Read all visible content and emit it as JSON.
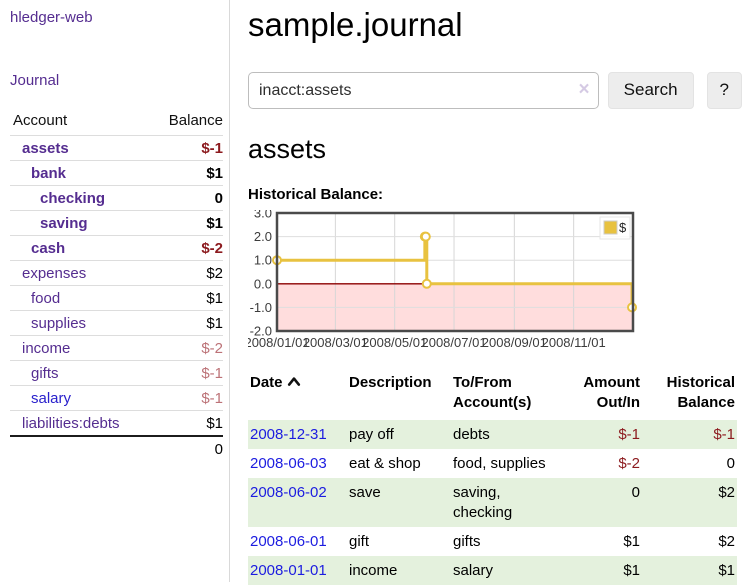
{
  "app": {
    "brand": "hledger-web",
    "nav_journal": "Journal"
  },
  "sidebar": {
    "header": {
      "account": "Account",
      "balance": "Balance"
    },
    "accounts": [
      {
        "name": "assets",
        "depth": 1,
        "balance": "$-1",
        "emph": true
      },
      {
        "name": "bank",
        "depth": 2,
        "balance": "$1",
        "emph": true
      },
      {
        "name": "checking",
        "depth": 3,
        "balance": "0",
        "emph": true
      },
      {
        "name": "saving",
        "depth": 3,
        "balance": "$1",
        "emph": true
      },
      {
        "name": "cash",
        "depth": 2,
        "balance": "$-2",
        "emph": true
      },
      {
        "name": "expenses",
        "depth": 1,
        "balance": "$2"
      },
      {
        "name": "food",
        "depth": 2,
        "balance": "$1"
      },
      {
        "name": "supplies",
        "depth": 2,
        "balance": "$1"
      },
      {
        "name": "income",
        "depth": 1,
        "balance": "$-2"
      },
      {
        "name": "gifts",
        "depth": 2,
        "balance": "$-1"
      },
      {
        "name": "salary",
        "depth": 2,
        "balance": "$-1",
        "unvisited": true
      },
      {
        "name": "liabilities:debts",
        "depth": 1,
        "balance": "$1"
      }
    ],
    "total": "0"
  },
  "header": {
    "title": "sample.journal"
  },
  "search": {
    "value": "inacct:assets",
    "clear_icon": "×",
    "button_label": "Search",
    "help_label": "?"
  },
  "account_view": {
    "title": "assets",
    "chart_heading": "Historical Balance:"
  },
  "chart_data": {
    "type": "line",
    "style": "step-after",
    "title": "Historical Balance",
    "series": [
      {
        "name": "$",
        "color": "#e8c240",
        "points": [
          [
            "2008-01-01",
            1
          ],
          [
            "2008-06-01",
            2
          ],
          [
            "2008-06-02",
            2
          ],
          [
            "2008-06-03",
            0
          ],
          [
            "2008-12-31",
            -1
          ]
        ]
      }
    ],
    "xlim": [
      "2008-01-01",
      "2009-01-01"
    ],
    "ylim": [
      -2,
      3
    ],
    "y_ticks": [
      "3.0",
      "2.0",
      "1.0",
      "0.0",
      "-1.0",
      "-2.0"
    ],
    "x_ticks": [
      "2008/01/01",
      "2008/03/01",
      "2008/05/01",
      "2008/07/01",
      "2008/09/01",
      "2008/11/01"
    ],
    "grid": true,
    "negative_fill": "#ffdddd",
    "zero_line_color": "#8b0000",
    "legend_position": "top-right",
    "legend_label": "$"
  },
  "register": {
    "columns": [
      "Date",
      "Description",
      "To/From Account(s)",
      "Amount Out/In",
      "Historical Balance"
    ],
    "sort": "ascending",
    "rows": [
      {
        "date": "2008-12-31",
        "description": "pay off",
        "accounts": "debts",
        "amount": "$-1",
        "balance": "$-1"
      },
      {
        "date": "2008-06-03",
        "description": "eat & shop",
        "accounts": "food, supplies",
        "amount": "$-2",
        "balance": "0"
      },
      {
        "date": "2008-06-02",
        "description": "save",
        "accounts": "saving, checking",
        "amount": "0",
        "balance": "$2"
      },
      {
        "date": "2008-06-01",
        "description": "gift",
        "accounts": "gifts",
        "amount": "$1",
        "balance": "$2"
      },
      {
        "date": "2008-01-01",
        "description": "income",
        "accounts": "salary",
        "amount": "$1",
        "balance": "$1"
      }
    ]
  }
}
